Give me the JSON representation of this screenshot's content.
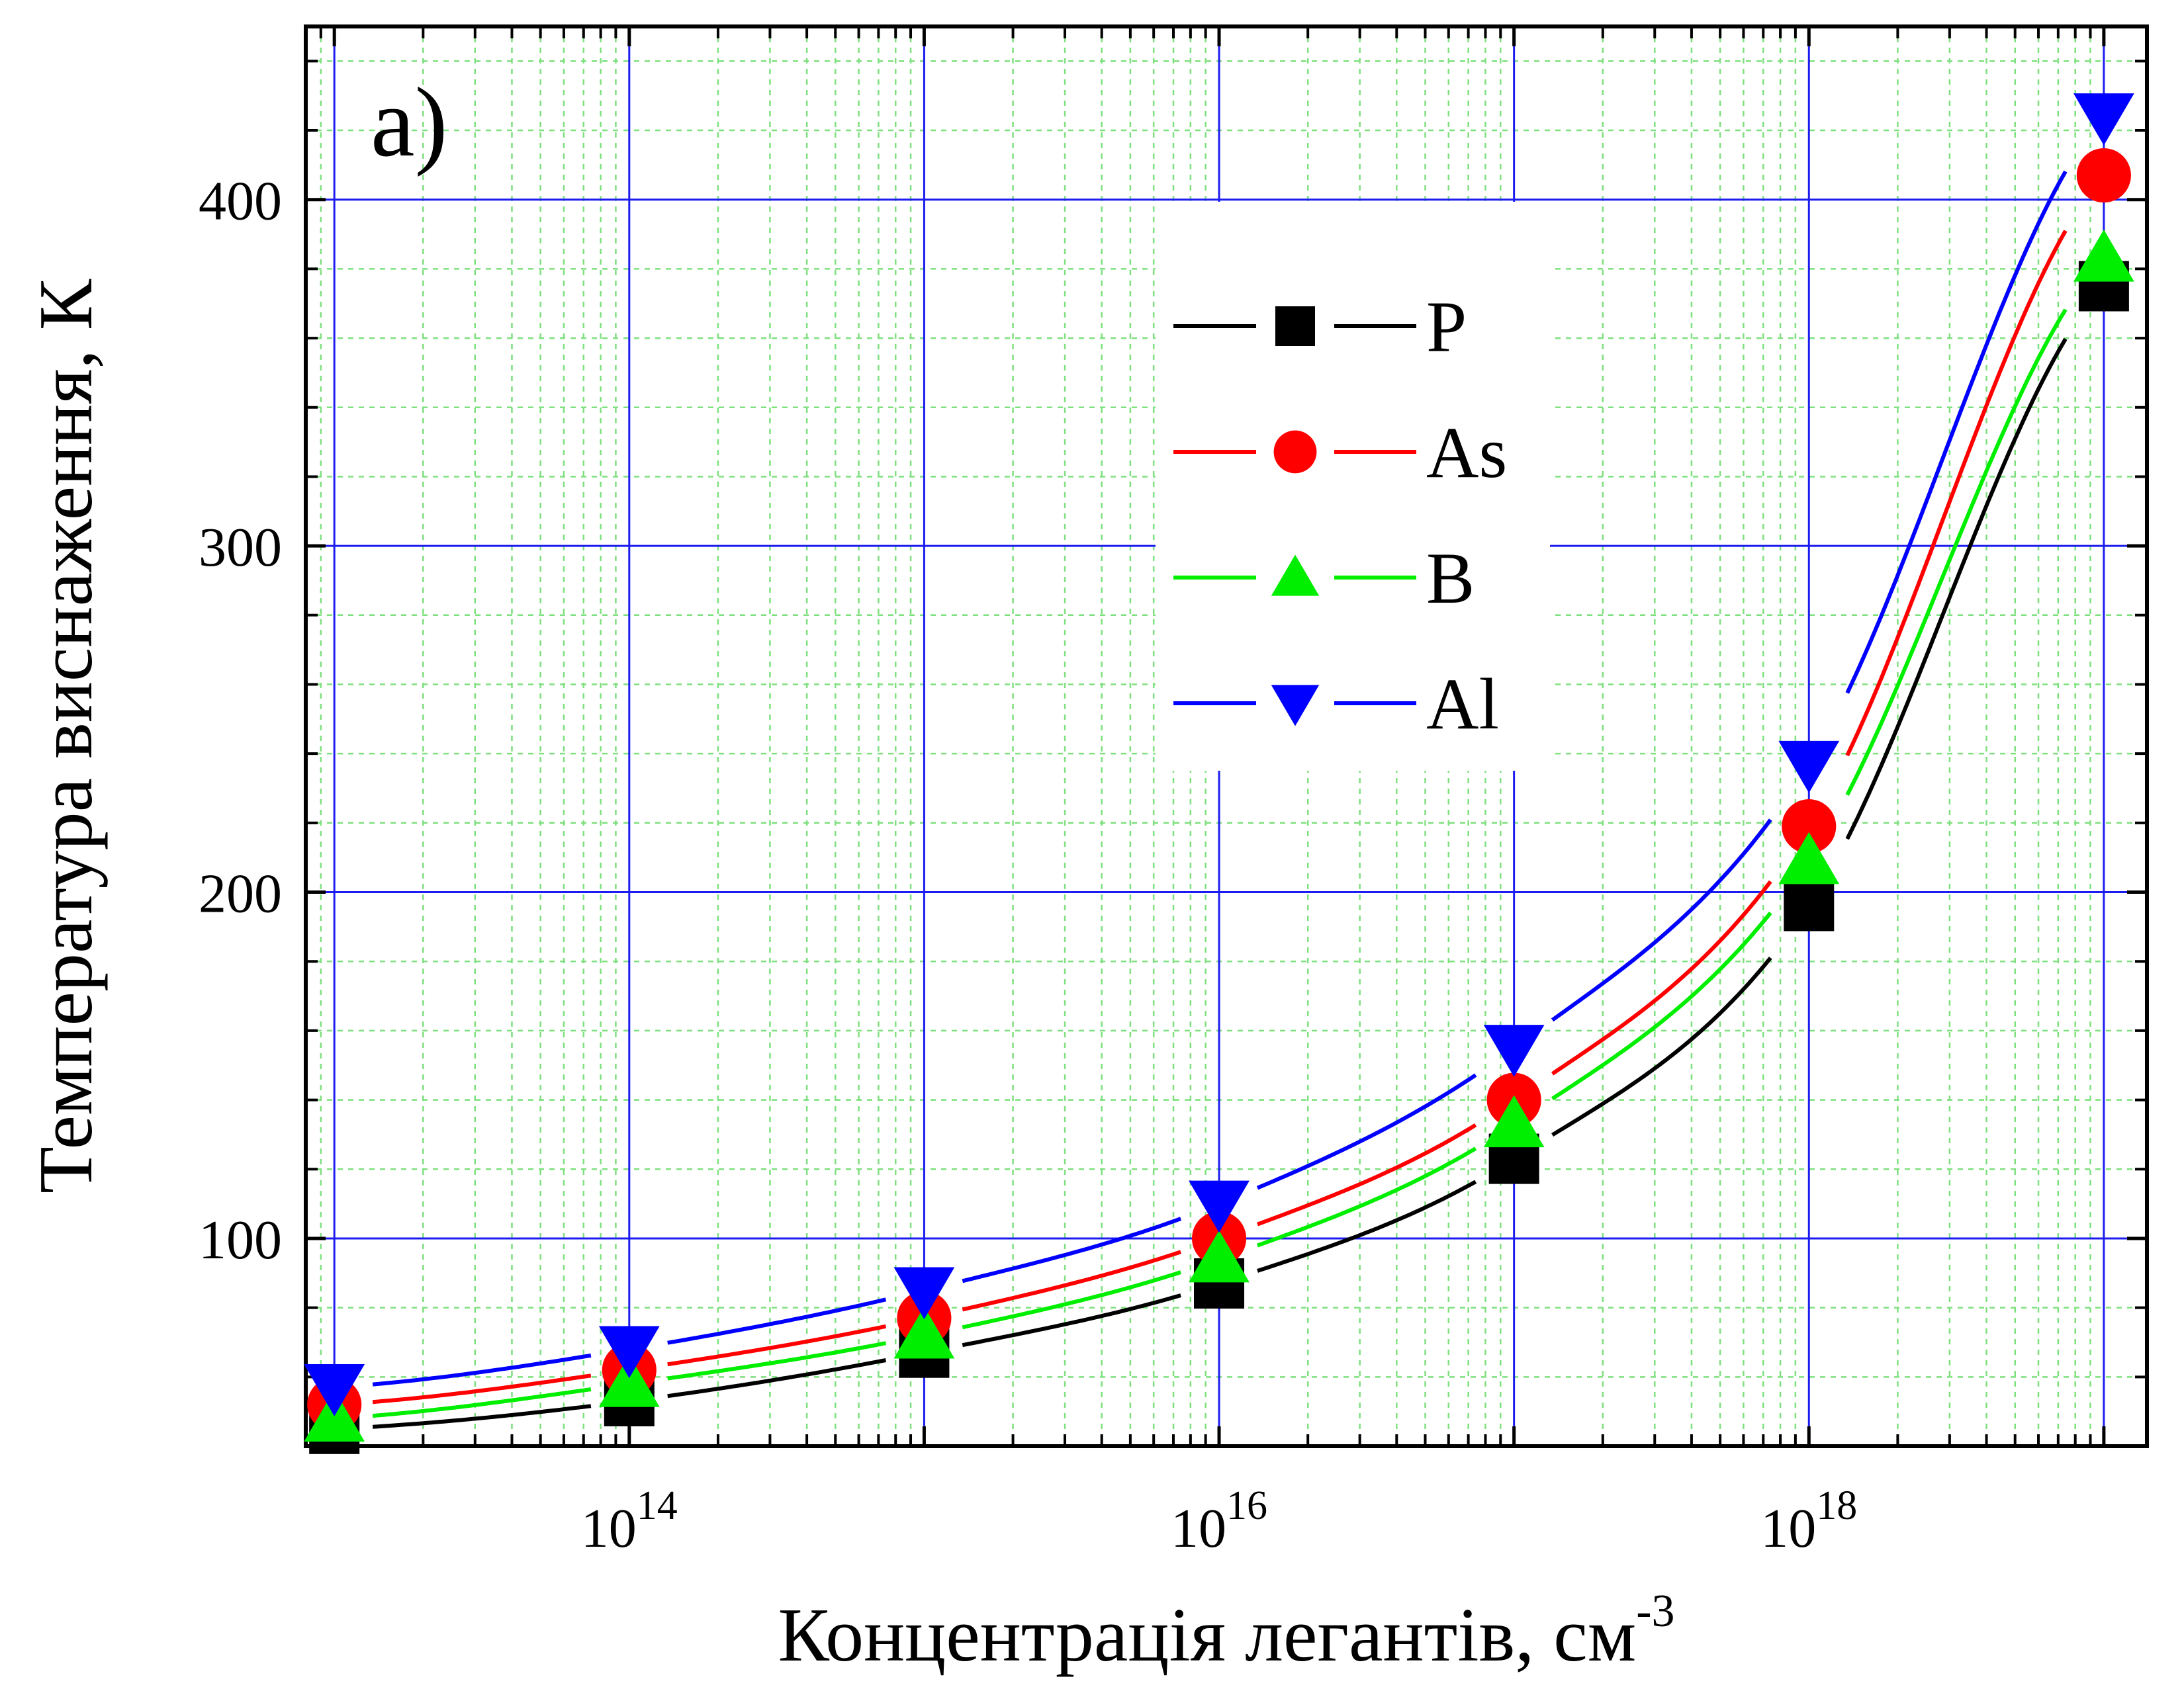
{
  "panel_label": "a)",
  "chart_data": {
    "type": "line",
    "title": "",
    "xlabel": "Концентрація легантів, см",
    "xlabel_superscript": "-3",
    "ylabel": "Температура виснаження, К",
    "xscale": "log",
    "x": [
      10000000000000.0,
      100000000000000.0,
      1000000000000000.0,
      1e+16,
      1e+17,
      1e+18,
      1e+19
    ],
    "xlim": [
      8000000000000.0,
      1.4e+19
    ],
    "ylim": [
      40,
      450
    ],
    "x_ticks": [
      {
        "base": "10",
        "exp": "14",
        "value": 100000000000000.0
      },
      {
        "base": "10",
        "exp": "16",
        "value": 1e+16
      },
      {
        "base": "10",
        "exp": "18",
        "value": 1e+18
      }
    ],
    "y_ticks": [
      "100",
      "200",
      "300",
      "400"
    ],
    "grid": true,
    "legend_position": "upper-middle-right",
    "series": [
      {
        "name": "P",
        "marker": "square",
        "color": "#000000",
        "values": [
          45,
          53,
          67,
          87,
          123,
          196,
          375
        ]
      },
      {
        "name": "As",
        "marker": "circle",
        "color": "#ff0000",
        "values": [
          52,
          62,
          77,
          100,
          140,
          219,
          407
        ]
      },
      {
        "name": "B",
        "marker": "triangle-up",
        "color": "#00ee00",
        "values": [
          48,
          58,
          72,
          94,
          133,
          209,
          383
        ]
      },
      {
        "name": "Al",
        "marker": "triangle-down",
        "color": "#0000ff",
        "values": [
          57,
          68,
          85,
          110,
          155,
          237,
          424
        ]
      }
    ]
  }
}
